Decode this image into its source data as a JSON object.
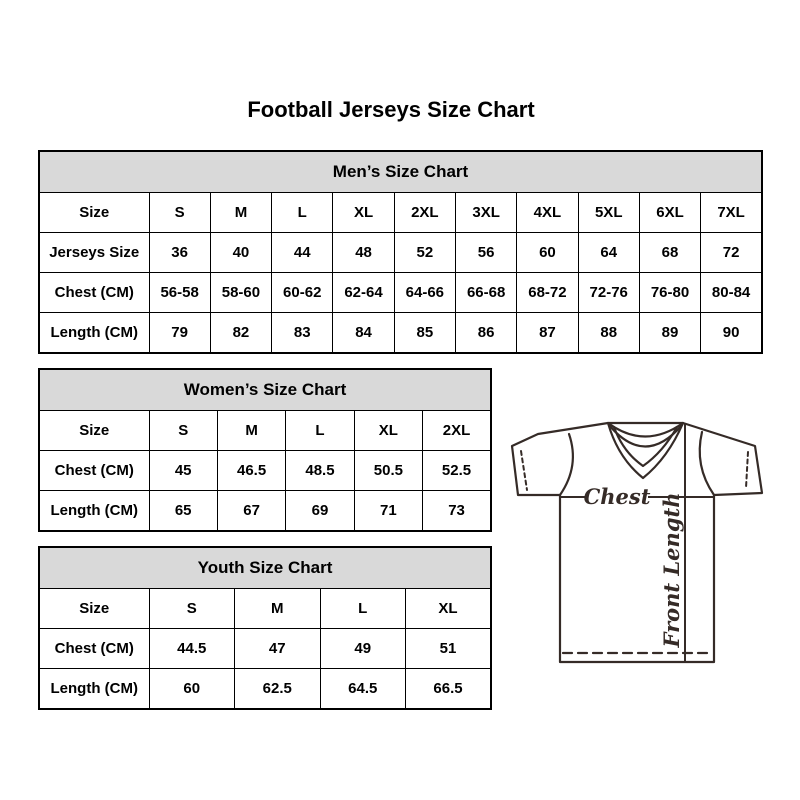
{
  "page": {
    "title": "Football Jerseys Size Chart"
  },
  "colors": {
    "header_fill": "#d9d9d9",
    "border": "#000000",
    "text": "#000000",
    "diagram_stroke": "#352b27",
    "background": "#ffffff"
  },
  "tables": [
    {
      "id": "mens",
      "title": "Men’s Size Chart",
      "rows": [
        [
          "Size",
          "S",
          "M",
          "L",
          "XL",
          "2XL",
          "3XL",
          "4XL",
          "5XL",
          "6XL",
          "7XL"
        ],
        [
          "Jerseys Size",
          "36",
          "40",
          "44",
          "48",
          "52",
          "56",
          "60",
          "64",
          "68",
          "72"
        ],
        [
          "Chest (CM)",
          "56-58",
          "58-60",
          "60-62",
          "62-64",
          "64-66",
          "66-68",
          "68-72",
          "72-76",
          "76-80",
          "80-84"
        ],
        [
          "Length (CM)",
          "79",
          "82",
          "83",
          "84",
          "85",
          "86",
          "87",
          "88",
          "89",
          "90"
        ]
      ]
    },
    {
      "id": "womens",
      "title": "Women’s Size Chart",
      "rows": [
        [
          "Size",
          "S",
          "M",
          "L",
          "XL",
          "2XL"
        ],
        [
          "Chest (CM)",
          "45",
          "46.5",
          "48.5",
          "50.5",
          "52.5"
        ],
        [
          "Length (CM)",
          "65",
          "67",
          "69",
          "71",
          "73"
        ]
      ]
    },
    {
      "id": "youth",
      "title": "Youth Size Chart",
      "rows": [
        [
          "Size",
          "S",
          "M",
          "L",
          "XL"
        ],
        [
          "Chest (CM)",
          "44.5",
          "47",
          "49",
          "51"
        ],
        [
          "Length (CM)",
          "60",
          "62.5",
          "64.5",
          "66.5"
        ]
      ]
    }
  ],
  "diagram": {
    "chest_label": "Chest",
    "front_length_label": "Front Length"
  }
}
